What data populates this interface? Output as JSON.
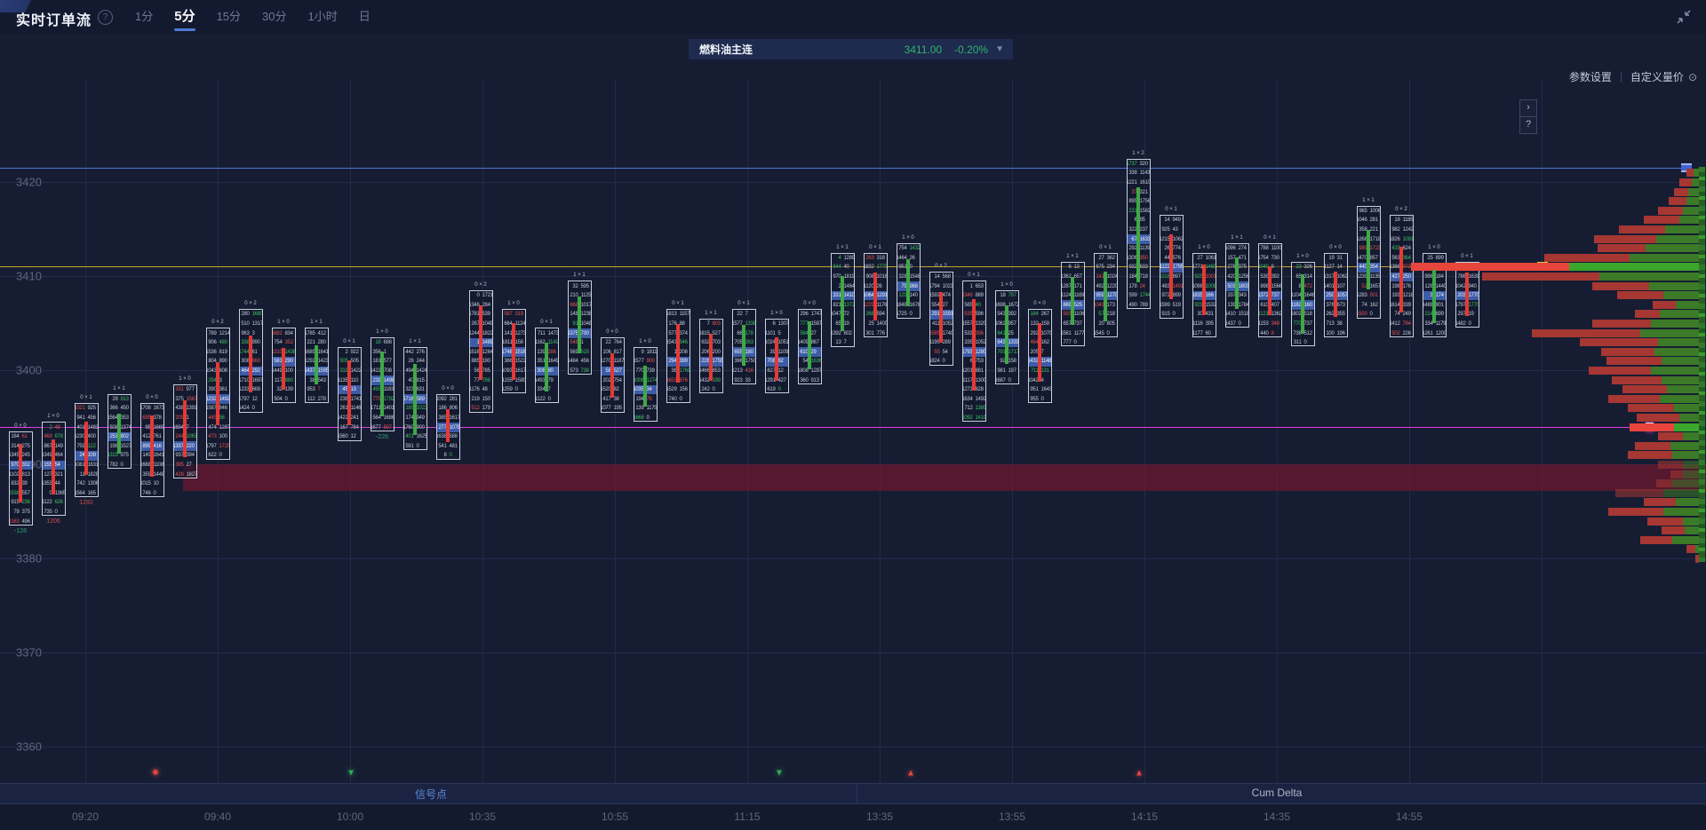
{
  "header": {
    "title": "实时订单流",
    "help_icon": "?",
    "tabs": [
      {
        "label": "1分",
        "active": false
      },
      {
        "label": "5分",
        "active": true
      },
      {
        "label": "15分",
        "active": false
      },
      {
        "label": "30分",
        "active": false
      },
      {
        "label": "1小时",
        "active": false
      },
      {
        "label": "日",
        "active": false
      }
    ],
    "collapse_icon": "collapse-arrows"
  },
  "instrument": {
    "name": "燃料油主连",
    "price": "3411.00",
    "change": "-0.20%",
    "caret_icon": "chevron-down"
  },
  "toolbar": {
    "params_label": "参数设置",
    "custom_volume_label": "自定义量价",
    "custom_volume_icon": "circle-dot-icon"
  },
  "nav_buttons": {
    "next": "›",
    "help": "?"
  },
  "panels": {
    "signal_label": "信号点",
    "cum_delta_label": "Cum Delta"
  },
  "colors": {
    "bg": "#161d33",
    "grid": "#232c4c",
    "axis_text": "#5d6580",
    "up_green": "#3fa946",
    "down_red": "#e53935",
    "poc_blue": "#3c5ca8",
    "price_green": "#2fb56b",
    "blue_line": "#5273d8",
    "yellow_line": "#c9a22a",
    "magenta_line": "#de3fe0",
    "band_red": "#7c152d",
    "profile_red": "#a63732",
    "profile_green": "#3c7a28",
    "profile_hot_red": "#e8453c",
    "profile_hot_green": "#3aa62c",
    "signal_blue": "#5b8bd8"
  },
  "chart_data": {
    "type": "footprint-orderflow",
    "title": "实时订单流 5分 燃料油主连",
    "current_price": 3411.0,
    "change_pct": -0.2,
    "price_ticks": [
      3420,
      3410,
      3400,
      3390,
      3380,
      3370,
      3360
    ],
    "time_ticks": [
      "09:20",
      "09:40",
      "10:00",
      "10:35",
      "10:55",
      "11:15",
      "13:35",
      "13:55",
      "14:15",
      "14:35",
      "14:55"
    ],
    "ylim": [
      3355,
      3424
    ],
    "hlines": [
      {
        "price": 3421.5,
        "color": "blue",
        "marker": "blue-square"
      },
      {
        "price": 3411.0,
        "color": "yellow",
        "marker": "yellow-square"
      },
      {
        "price": 3394.0,
        "color": "magenta",
        "marker": "white-square"
      }
    ],
    "red_band": {
      "price_top": 3390.0,
      "price_bottom": 3387.2,
      "x_start_time": "09:35"
    },
    "signals": [
      {
        "time": "09:30",
        "dir": "sell",
        "shape": "burst",
        "color": "red"
      },
      {
        "time": "10:00",
        "dir": "sell",
        "shape": "triangle-down",
        "color": "green"
      },
      {
        "time": "11:20",
        "dir": "sell",
        "shape": "triangle-down",
        "color": "green"
      },
      {
        "time": "13:40",
        "dir": "buy",
        "shape": "triangle-up",
        "color": "red"
      },
      {
        "time": "14:15",
        "dir": "buy",
        "shape": "triangle-up",
        "color": "red"
      }
    ],
    "candles": [
      {
        "top": 3393,
        "bot": 3384,
        "dir": -1,
        "poc": 3390,
        "head": "0 × 0",
        "delta": "-128"
      },
      {
        "top": 3394,
        "bot": 3385,
        "dir": -1,
        "poc": 3390,
        "head": "1 × 0",
        "delta": "1206"
      },
      {
        "top": 3396,
        "bot": 3387,
        "dir": -1,
        "poc": 3391,
        "head": "0 × 1",
        "delta": "1292"
      },
      {
        "top": 3397,
        "bot": 3390,
        "dir": 1,
        "poc": 3393,
        "head": "1 × 1",
        "delta": null
      },
      {
        "top": 3396,
        "bot": 3387,
        "dir": -1,
        "poc": 3392,
        "head": "0 × 0",
        "delta": null
      },
      {
        "top": 3398,
        "bot": 3389,
        "dir": -1,
        "poc": 3392,
        "head": "1 × 0",
        "delta": null
      },
      {
        "top": 3404,
        "bot": 3391,
        "dir": -1,
        "poc": 3397,
        "head": "0 × 2",
        "delta": null
      },
      {
        "top": 3406,
        "bot": 3396,
        "dir": -1,
        "poc": 3400,
        "head": "0 × 2",
        "delta": null
      },
      {
        "top": 3404,
        "bot": 3397,
        "dir": -1,
        "poc": 3401,
        "head": "1 × 0",
        "delta": null
      },
      {
        "top": 3404,
        "bot": 3397,
        "dir": 1,
        "poc": 3400,
        "head": "1 × 1",
        "delta": null
      },
      {
        "top": 3402,
        "bot": 3393,
        "dir": -1,
        "poc": 3398,
        "head": "0 × 1",
        "delta": null
      },
      {
        "top": 3403,
        "bot": 3394,
        "dir": 1,
        "poc": 3399,
        "head": "1 × 0",
        "delta": "-226"
      },
      {
        "top": 3402,
        "bot": 3392,
        "dir": 1,
        "poc": 3397,
        "head": "1 × 1",
        "delta": null
      },
      {
        "top": 3397,
        "bot": 3391,
        "dir": -1,
        "poc": 3394,
        "head": "0 × 0",
        "delta": null
      },
      {
        "top": 3408,
        "bot": 3396,
        "dir": -1,
        "poc": 3403,
        "head": "0 × 2",
        "delta": null
      },
      {
        "top": 3406,
        "bot": 3398,
        "dir": -1,
        "poc": 3402,
        "head": "1 × 0",
        "delta": null
      },
      {
        "top": 3404,
        "bot": 3397,
        "dir": 1,
        "poc": 3400,
        "head": "0 × 1",
        "delta": null
      },
      {
        "top": 3409,
        "bot": 3400,
        "dir": 1,
        "poc": 3404,
        "head": "1 × 1",
        "delta": null
      },
      {
        "top": 3403,
        "bot": 3396,
        "dir": -1,
        "poc": 3400,
        "head": "0 × 0",
        "delta": null
      },
      {
        "top": 3402,
        "bot": 3395,
        "dir": 1,
        "poc": 3398,
        "head": "1 × 0",
        "delta": null
      },
      {
        "top": 3406,
        "bot": 3397,
        "dir": -1,
        "poc": 3401,
        "head": "0 × 1",
        "delta": null
      },
      {
        "top": 3405,
        "bot": 3398,
        "dir": -1,
        "poc": 3401,
        "head": "1 × 1",
        "delta": null
      },
      {
        "top": 3406,
        "bot": 3399,
        "dir": 1,
        "poc": 3402,
        "head": "0 × 1",
        "delta": null
      },
      {
        "top": 3405,
        "bot": 3398,
        "dir": -1,
        "poc": 3401,
        "head": "1 × 0",
        "delta": null
      },
      {
        "top": 3406,
        "bot": 3399,
        "dir": 1,
        "poc": 3402,
        "head": "0 × 0",
        "delta": null
      },
      {
        "top": 3412,
        "bot": 3403,
        "dir": 1,
        "poc": 3408,
        "head": "1 × 1",
        "delta": null
      },
      {
        "top": 3412,
        "bot": 3404,
        "dir": -1,
        "poc": 3408,
        "head": "0 × 1",
        "delta": null
      },
      {
        "top": 3413,
        "bot": 3406,
        "dir": 1,
        "poc": 3409,
        "head": "1 × 0",
        "delta": null
      },
      {
        "top": 3410,
        "bot": 3401,
        "dir": -1,
        "poc": 3406,
        "head": "0 × 2",
        "delta": null
      },
      {
        "top": 3409,
        "bot": 3395,
        "dir": -1,
        "poc": 3402,
        "head": "0 × 1",
        "delta": null
      },
      {
        "top": 3408,
        "bot": 3399,
        "dir": 1,
        "poc": 3403,
        "head": "1 × 0",
        "delta": null
      },
      {
        "top": 3406,
        "bot": 3397,
        "dir": -1,
        "poc": 3401,
        "head": "0 × 0",
        "delta": null
      },
      {
        "top": 3411,
        "bot": 3403,
        "dir": 1,
        "poc": 3407,
        "head": "1 × 1",
        "delta": null
      },
      {
        "top": 3412,
        "bot": 3404,
        "dir": 1,
        "poc": 3408,
        "head": "0 × 1",
        "delta": null
      },
      {
        "top": 3422,
        "bot": 3407,
        "dir": 1,
        "poc": 3414,
        "head": "1 × 2",
        "delta": null
      },
      {
        "top": 3416,
        "bot": 3406,
        "dir": -1,
        "poc": 3411,
        "head": "0 × 1",
        "delta": null
      },
      {
        "top": 3412,
        "bot": 3404,
        "dir": -1,
        "poc": 3408,
        "head": "1 × 0",
        "delta": null
      },
      {
        "top": 3413,
        "bot": 3405,
        "dir": 1,
        "poc": 3409,
        "head": "1 × 1",
        "delta": null
      },
      {
        "top": 3413,
        "bot": 3404,
        "dir": -1,
        "poc": 3408,
        "head": "0 × 1",
        "delta": null
      },
      {
        "top": 3411,
        "bot": 3403,
        "dir": 1,
        "poc": 3407,
        "head": "1 × 0",
        "delta": null
      },
      {
        "top": 3412,
        "bot": 3404,
        "dir": -1,
        "poc": 3408,
        "head": "0 × 0",
        "delta": null
      },
      {
        "top": 3417,
        "bot": 3406,
        "dir": 1,
        "poc": 3411,
        "head": "1 × 1",
        "delta": null
      },
      {
        "top": 3416,
        "bot": 3404,
        "dir": -1,
        "poc": 3410,
        "head": "0 × 2",
        "delta": null
      },
      {
        "top": 3412,
        "bot": 3404,
        "dir": 1,
        "poc": 3408,
        "head": "1 × 0",
        "delta": null
      },
      {
        "top": 3411,
        "bot": 3405,
        "dir": -1,
        "poc": 3408,
        "head": "0 × 1",
        "delta": null
      }
    ],
    "volume_profile": {
      "anchor": "right",
      "rows": [
        {
          "p": 3421,
          "r": 8,
          "g": 6,
          "hot": false
        },
        {
          "p": 3420,
          "r": 14,
          "g": 8,
          "hot": false
        },
        {
          "p": 3419,
          "r": 16,
          "g": 12,
          "hot": false
        },
        {
          "p": 3418,
          "r": 20,
          "g": 14,
          "hot": false
        },
        {
          "p": 3417,
          "r": 28,
          "g": 18,
          "hot": false
        },
        {
          "p": 3416,
          "r": 40,
          "g": 22,
          "hot": false
        },
        {
          "p": 3415,
          "r": 52,
          "g": 38,
          "hot": false
        },
        {
          "p": 3414,
          "r": 70,
          "g": 48,
          "hot": false
        },
        {
          "p": 3413,
          "r": 54,
          "g": 60,
          "hot": false
        },
        {
          "p": 3412,
          "r": 96,
          "g": 78,
          "hot": false
        },
        {
          "p": 3411,
          "r": 178,
          "g": 146,
          "hot": true
        },
        {
          "p": 3410,
          "r": 132,
          "g": 112,
          "hot": false
        },
        {
          "p": 3409,
          "r": 64,
          "g": 56,
          "hot": false
        },
        {
          "p": 3408,
          "r": 52,
          "g": 40,
          "hot": false
        },
        {
          "p": 3407,
          "r": 26,
          "g": 26,
          "hot": false
        },
        {
          "p": 3406,
          "r": 28,
          "g": 44,
          "hot": false
        },
        {
          "p": 3405,
          "r": 66,
          "g": 54,
          "hot": false
        },
        {
          "p": 3404,
          "r": 122,
          "g": 66,
          "hot": false
        },
        {
          "p": 3403,
          "r": 88,
          "g": 46,
          "hot": false
        },
        {
          "p": 3402,
          "r": 60,
          "g": 50,
          "hot": false
        },
        {
          "p": 3401,
          "r": 62,
          "g": 42,
          "hot": false
        },
        {
          "p": 3400,
          "r": 70,
          "g": 54,
          "hot": false
        },
        {
          "p": 3399,
          "r": 56,
          "g": 42,
          "hot": false
        },
        {
          "p": 3398,
          "r": 50,
          "g": 36,
          "hot": false
        },
        {
          "p": 3397,
          "r": 58,
          "g": 44,
          "hot": false
        },
        {
          "p": 3396,
          "r": 52,
          "g": 28,
          "hot": false
        },
        {
          "p": 3395,
          "r": 48,
          "g": 22,
          "hot": false
        },
        {
          "p": 3394,
          "r": 50,
          "g": 28,
          "hot": true
        },
        {
          "p": 3393,
          "r": 28,
          "g": 18,
          "hot": false
        },
        {
          "p": 3392,
          "r": 40,
          "g": 32,
          "hot": false
        },
        {
          "p": 3391,
          "r": 50,
          "g": 30,
          "hot": false
        },
        {
          "p": 3390,
          "r": 28,
          "g": 18,
          "hot": false
        },
        {
          "p": 3389,
          "r": 14,
          "g": 18,
          "hot": false
        },
        {
          "p": 3388,
          "r": 18,
          "g": 30,
          "hot": false
        },
        {
          "p": 3387,
          "r": 54,
          "g": 40,
          "hot": false
        },
        {
          "p": 3386,
          "r": 36,
          "g": 26,
          "hot": false
        },
        {
          "p": 3385,
          "r": 62,
          "g": 40,
          "hot": false
        },
        {
          "p": 3384,
          "r": 40,
          "g": 18,
          "hot": false
        },
        {
          "p": 3383,
          "r": 26,
          "g": 16,
          "hot": false
        },
        {
          "p": 3382,
          "r": 36,
          "g": 30,
          "hot": false
        },
        {
          "p": 3381,
          "r": 10,
          "g": 4,
          "hot": false
        },
        {
          "p": 3380,
          "r": 4,
          "g": 0,
          "hot": false
        }
      ]
    }
  }
}
